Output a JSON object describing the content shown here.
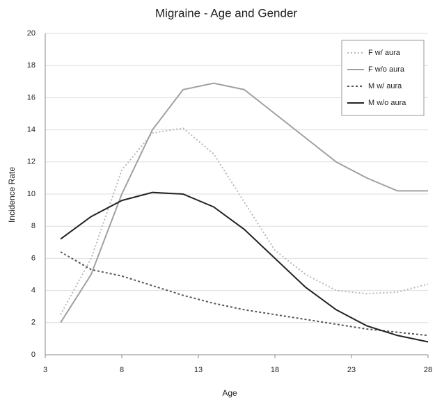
{
  "chart_data": {
    "type": "line",
    "title": "Migraine - Age and Gender",
    "x_label": "Age",
    "y_label": "Incidence Rate",
    "x": [
      4,
      6,
      8,
      10,
      12,
      14,
      16,
      18,
      20,
      22,
      24,
      26,
      28
    ],
    "series": [
      {
        "name": "F w/ aura",
        "color": "#b8b8b8",
        "dash": "2,3",
        "values": [
          2.5,
          6,
          11.5,
          13.8,
          14.1,
          12.5,
          9.5,
          6.5,
          5,
          4,
          3.8,
          3.9,
          4.4
        ]
      },
      {
        "name": "F w/o aura",
        "color": "#a0a0a0",
        "dash": "none",
        "values": [
          2,
          5,
          10,
          14,
          16.5,
          16.9,
          16.5,
          15,
          13.5,
          12,
          11,
          10.2,
          10.2
        ]
      },
      {
        "name": "M w/ aura",
        "color": "#555555",
        "dash": "3,3",
        "values": [
          6.4,
          5.3,
          4.9,
          4.3,
          3.7,
          3.2,
          2.8,
          2.5,
          2.2,
          1.9,
          1.6,
          1.4,
          1.2
        ]
      },
      {
        "name": "M w/o aura",
        "color": "#222222",
        "dash": "none",
        "values": [
          7.2,
          8.6,
          9.6,
          10.1,
          10,
          9.2,
          7.8,
          6,
          4.2,
          2.8,
          1.8,
          1.2,
          0.8
        ]
      }
    ],
    "xlim": [
      3,
      28
    ],
    "xticks": [
      3,
      8,
      13,
      18,
      23,
      28
    ],
    "ylim": [
      0,
      20
    ],
    "yticks": [
      0,
      2,
      4,
      6,
      8,
      10,
      12,
      14,
      16,
      18,
      20
    ],
    "grid": true,
    "legend": "top-right"
  }
}
